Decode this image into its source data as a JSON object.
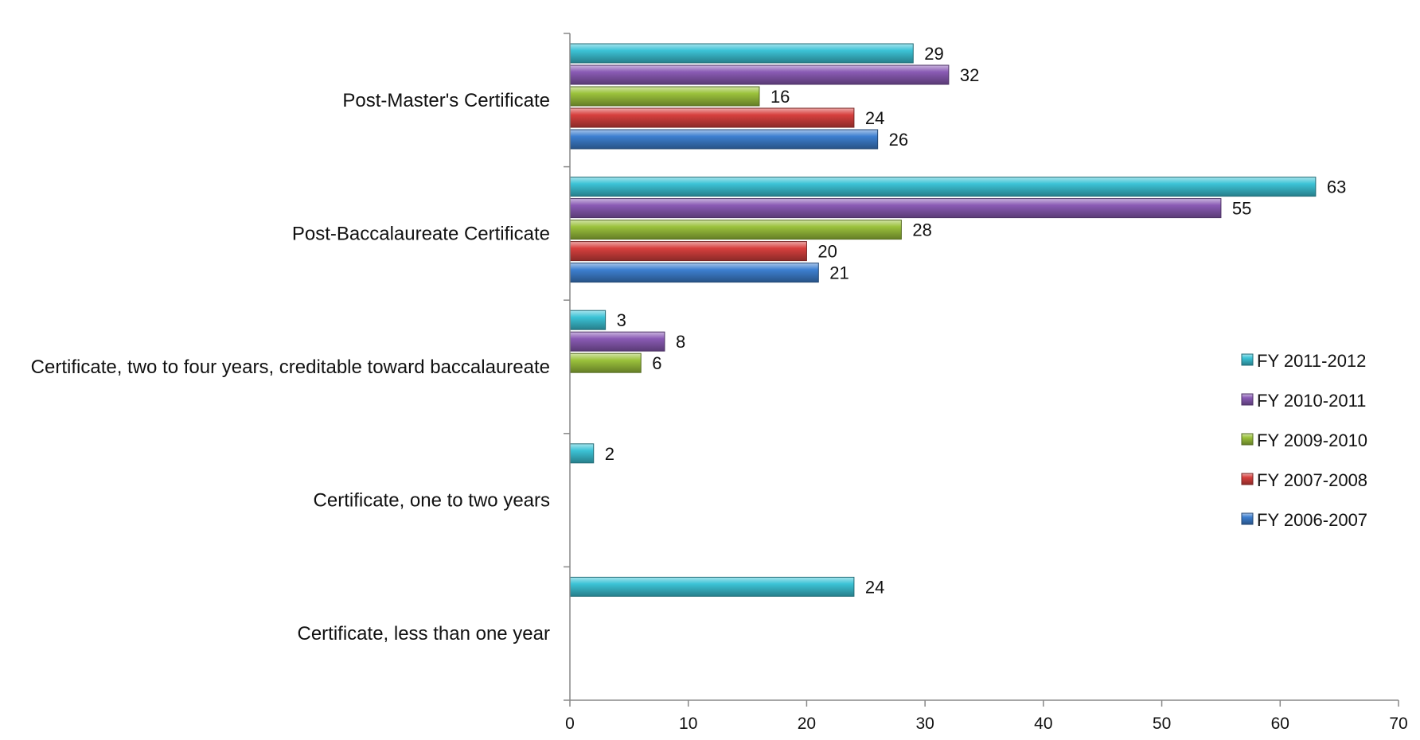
{
  "chart_data": {
    "type": "bar",
    "orientation": "horizontal",
    "grid": false,
    "legend_position": "right",
    "xlim": [
      0,
      70
    ],
    "x_ticks": [
      0,
      10,
      20,
      30,
      40,
      50,
      60,
      70
    ],
    "categories": [
      "Post-Master's Certificate",
      "Post-Baccalaureate Certificate",
      "Certificate, two to four years, creditable toward baccalaureate",
      "Certificate, one to  two years",
      "Certificate, less than one year"
    ],
    "series": [
      {
        "name": "FY 2011-2012",
        "color": "#3cc3d6",
        "values": [
          29,
          63,
          3,
          2,
          24
        ]
      },
      {
        "name": "FY 2010-2011",
        "color": "#8a5bb5",
        "values": [
          32,
          55,
          8,
          null,
          null
        ]
      },
      {
        "name": "FY 2009-2010",
        "color": "#9bc23c",
        "values": [
          16,
          28,
          6,
          null,
          null
        ]
      },
      {
        "name": "FY 2007-2008",
        "color": "#d7403e",
        "values": [
          24,
          20,
          null,
          null,
          null
        ]
      },
      {
        "name": "FY 2006-2007",
        "color": "#3d7fd0",
        "values": [
          26,
          21,
          null,
          null,
          null
        ]
      }
    ]
  }
}
